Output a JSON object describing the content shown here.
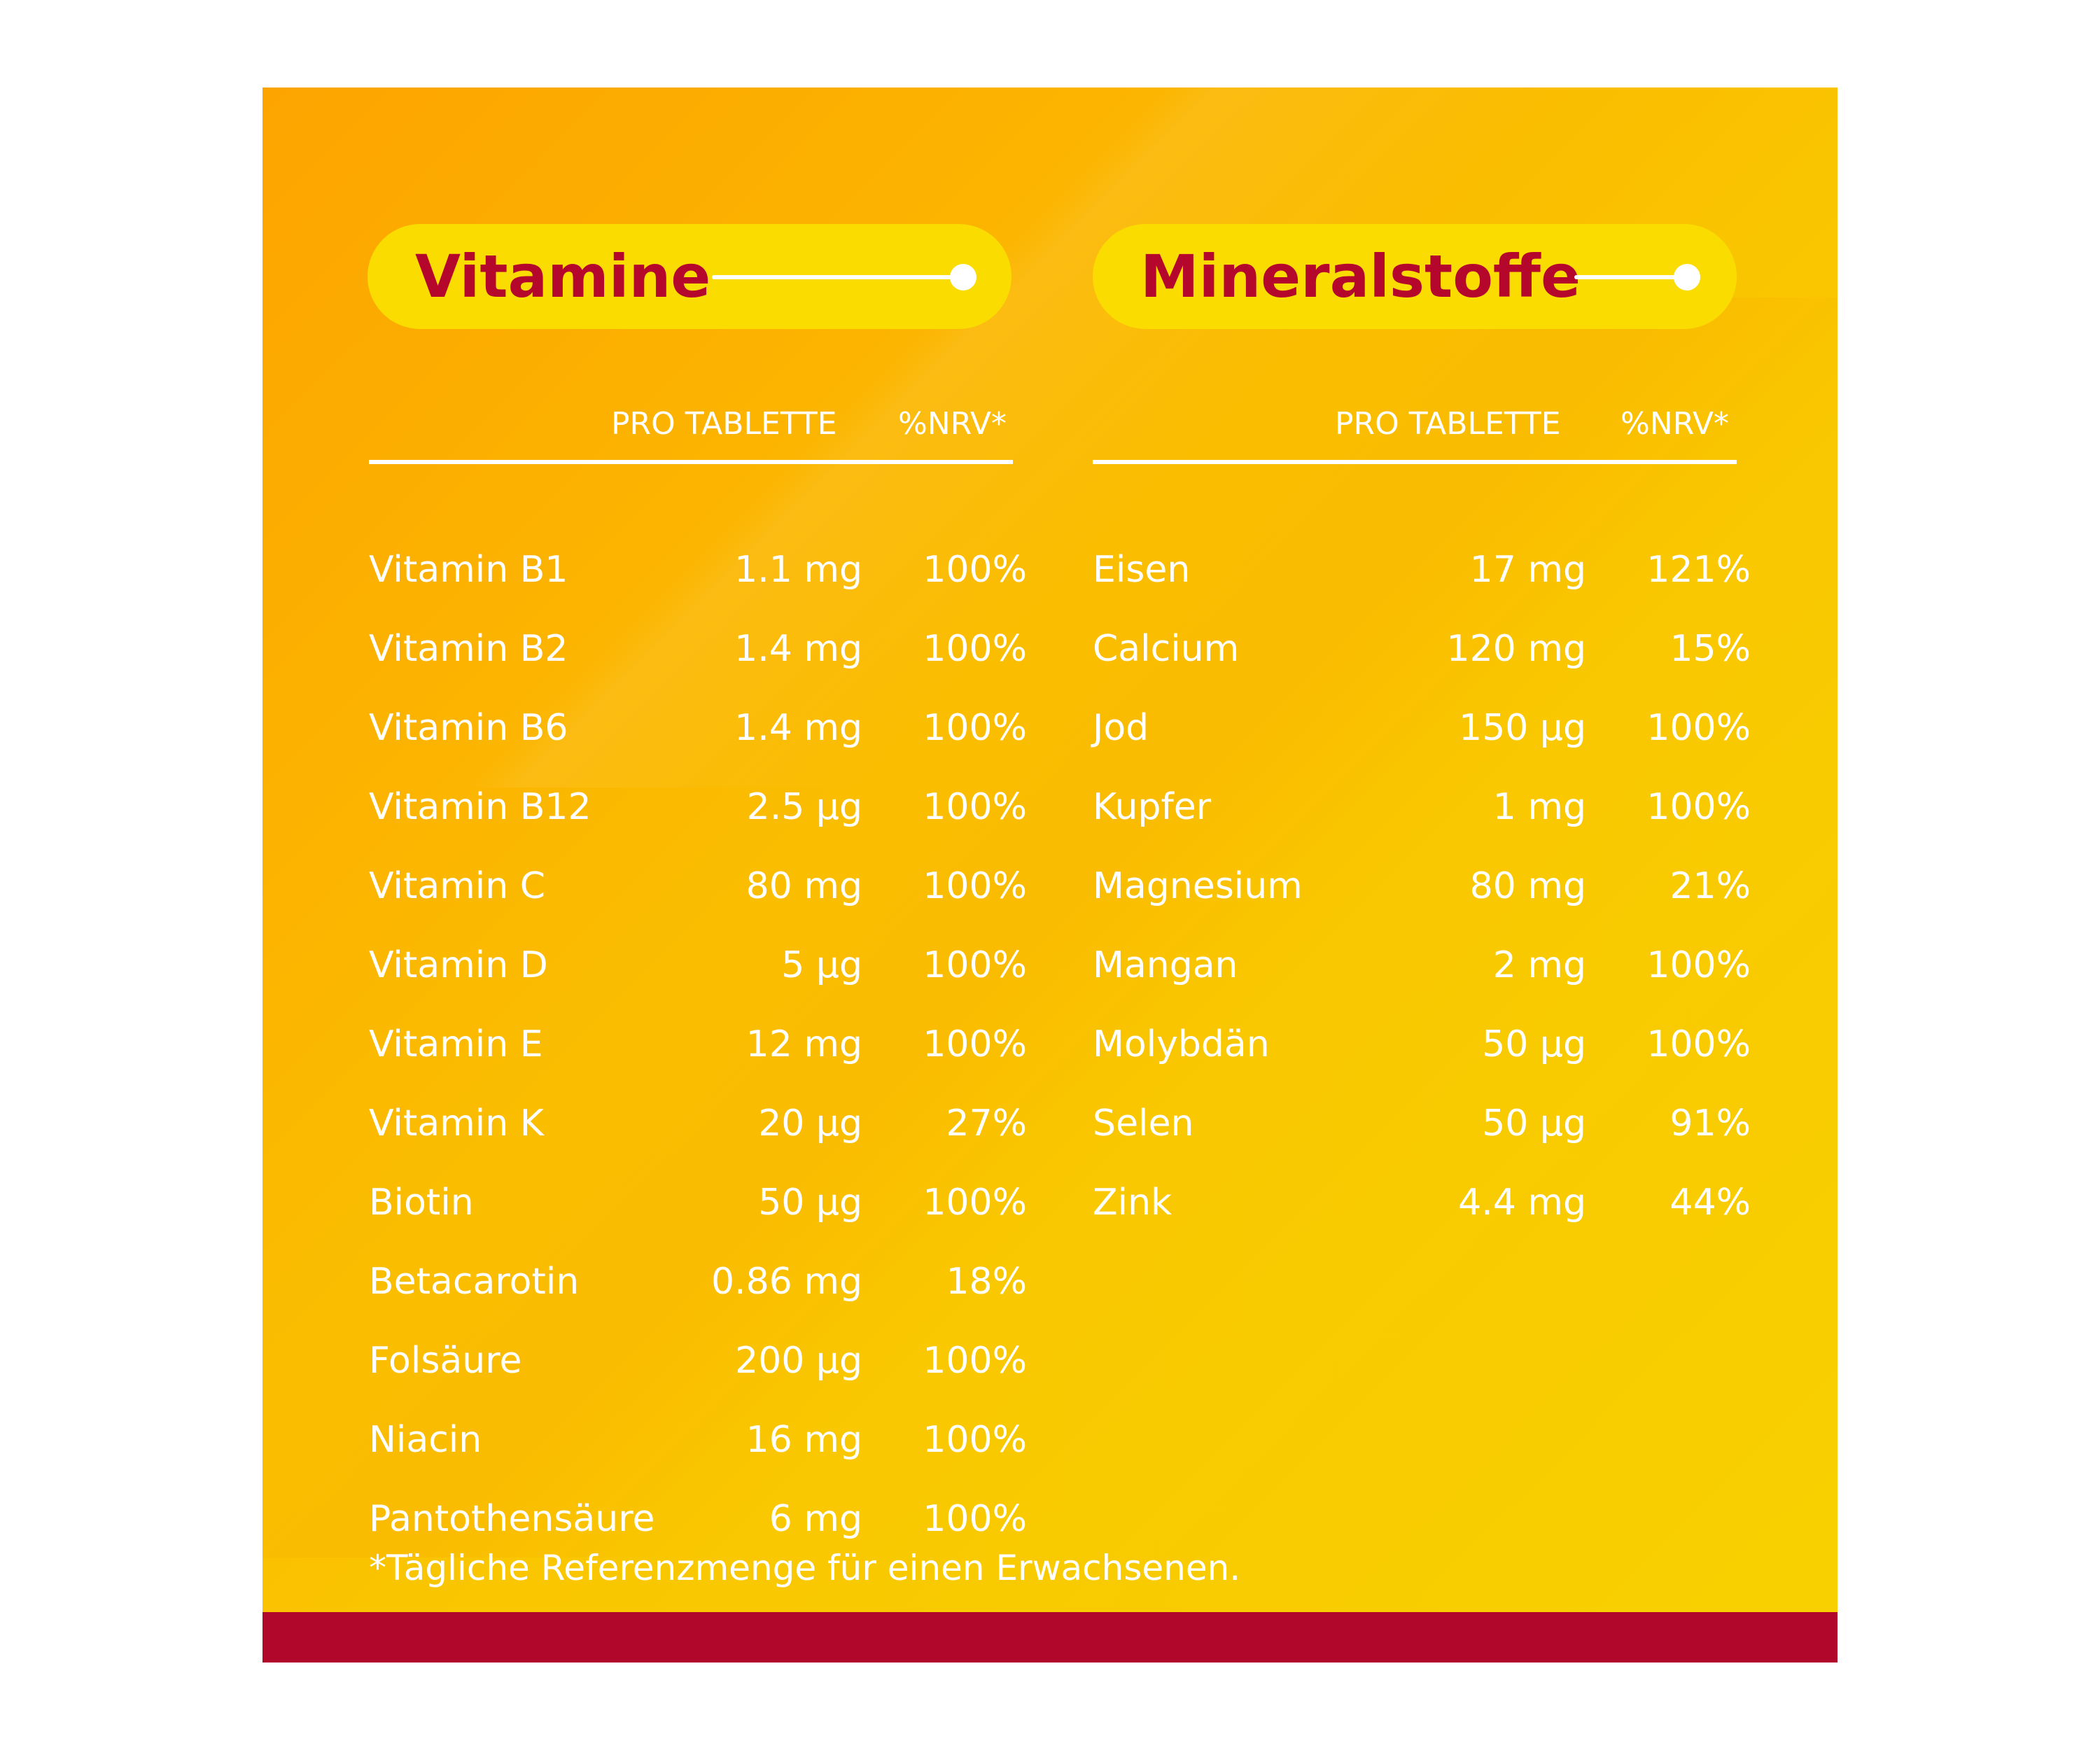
{
  "colors": {
    "panel_gradient_start": "#fda400",
    "panel_gradient_end": "#f8d100",
    "pill": "#fbdc00",
    "title_text": "#b5062c",
    "bottom_bar": "#b0072b",
    "text": "#ffffff"
  },
  "vitamine": {
    "title": "Vitamine",
    "header_amount": "PRO TABLETTE",
    "header_nrv": "%NRV*",
    "rows": [
      {
        "name": "Vitamin B1",
        "amount": "1.1 mg",
        "nrv": "100%"
      },
      {
        "name": "Vitamin B2",
        "amount": "1.4 mg",
        "nrv": "100%"
      },
      {
        "name": "Vitamin B6",
        "amount": "1.4 mg",
        "nrv": "100%"
      },
      {
        "name": "Vitamin B12",
        "amount": "2.5 µg",
        "nrv": "100%"
      },
      {
        "name": "Vitamin C",
        "amount": "80 mg",
        "nrv": "100%"
      },
      {
        "name": "Vitamin D",
        "amount": "5 µg",
        "nrv": "100%"
      },
      {
        "name": "Vitamin E",
        "amount": "12 mg",
        "nrv": "100%"
      },
      {
        "name": "Vitamin K",
        "amount": "20 µg",
        "nrv": "27%"
      },
      {
        "name": "Biotin",
        "amount": "50 µg",
        "nrv": "100%"
      },
      {
        "name": "Betacarotin",
        "amount": "0.86 mg",
        "nrv": "18%"
      },
      {
        "name": "Folsäure",
        "amount": "200 µg",
        "nrv": "100%"
      },
      {
        "name": "Niacin",
        "amount": "16 mg",
        "nrv": "100%"
      },
      {
        "name": "Pantothensäure",
        "amount": "6 mg",
        "nrv": "100%"
      }
    ]
  },
  "mineralstoffe": {
    "title": "Mineralstoffe",
    "header_amount": "PRO TABLETTE",
    "header_nrv": "%NRV*",
    "rows": [
      {
        "name": "Eisen",
        "amount": "17 mg",
        "nrv": "121%"
      },
      {
        "name": "Calcium",
        "amount": "120 mg",
        "nrv": "15%"
      },
      {
        "name": "Jod",
        "amount": "150 µg",
        "nrv": "100%"
      },
      {
        "name": "Kupfer",
        "amount": "1 mg",
        "nrv": "100%"
      },
      {
        "name": "Magnesium",
        "amount": "80 mg",
        "nrv": "21%"
      },
      {
        "name": "Mangan",
        "amount": "2 mg",
        "nrv": "100%"
      },
      {
        "name": "Molybdän",
        "amount": "50 µg",
        "nrv": "100%"
      },
      {
        "name": "Selen",
        "amount": "50 µg",
        "nrv": "91%"
      },
      {
        "name": "Zink",
        "amount": "4.4 mg",
        "nrv": "44%"
      }
    ]
  },
  "footnote": "*Tägliche Referenzmenge für einen Erwachsenen."
}
